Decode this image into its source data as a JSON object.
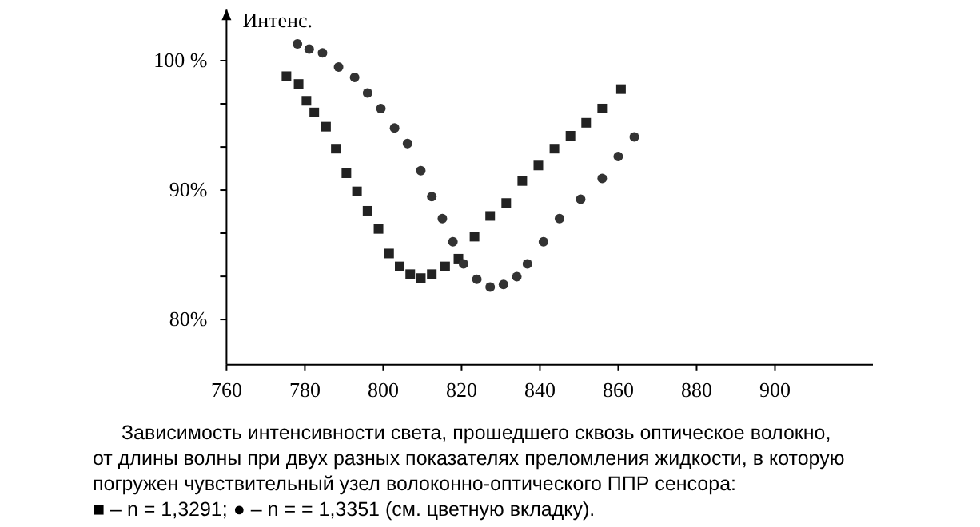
{
  "chart_data": {
    "type": "scatter",
    "ylabel": "Интенс.",
    "xlim": [
      760,
      925
    ],
    "xticks": [
      760,
      780,
      800,
      820,
      840,
      860,
      880,
      900
    ],
    "ylim": [
      76.5,
      104
    ],
    "yticks": [
      {
        "value": 80,
        "label": "80%"
      },
      {
        "value": 83.33,
        "label": null
      },
      {
        "value": 86.67,
        "label": null
      },
      {
        "value": 90,
        "label": "90%"
      },
      {
        "value": 93.33,
        "label": null
      },
      {
        "value": 96.67,
        "label": null
      },
      {
        "value": 100,
        "label": "100 %"
      }
    ],
    "series": [
      {
        "color": "#222222",
        "marker": "square",
        "x": [
          775.3,
          778.4,
          780.4,
          782.4,
          785.4,
          787.9,
          790.6,
          793.3,
          796,
          798.8,
          801.5,
          804.2,
          806.9,
          809.6,
          812.4,
          815.8,
          819.2,
          823.3,
          827.3,
          831.4,
          835.5,
          839.6,
          843.7,
          847.8,
          851.8,
          855.9,
          860.7
        ],
        "values": [
          98.8,
          98.2,
          96.9,
          96.0,
          94.9,
          93.2,
          91.3,
          89.9,
          88.4,
          87.0,
          85.1,
          84.1,
          83.5,
          83.2,
          83.5,
          84.1,
          84.7,
          86.4,
          88.0,
          89.0,
          90.7,
          91.9,
          93.2,
          94.2,
          95.2,
          96.3,
          97.8
        ]
      },
      {
        "color": "#333333",
        "marker": "circle",
        "x": [
          778.1,
          781.1,
          784.5,
          788.6,
          792.7,
          796,
          799.4,
          802.9,
          806.2,
          809.6,
          812.4,
          815.1,
          817.8,
          820.5,
          823.9,
          827.3,
          830.7,
          834.1,
          836.8,
          840.9,
          845,
          850.4,
          855.9,
          860,
          864.1
        ],
        "values": [
          101.3,
          100.9,
          100.6,
          99.5,
          98.7,
          97.5,
          96.3,
          94.8,
          93.6,
          91.5,
          89.5,
          87.8,
          86.0,
          84.3,
          83.1,
          82.5,
          82.7,
          83.3,
          84.3,
          86.0,
          87.8,
          89.3,
          90.9,
          92.6,
          94.1
        ]
      }
    ],
    "annotations": [
      "Зависимость интенсивности света, прошедшего сквозь оптическое волокно,",
      "от длины волны при двух разных показателях преломления жидкости, в которую",
      "погружен чувствительный узел волоконно-оптического ППР сенсора:",
      "■ – n = 1,3291; ● – n = = 1,3351 (см. цветную вкладку)."
    ]
  }
}
